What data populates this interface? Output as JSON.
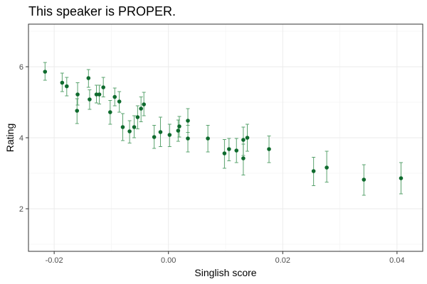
{
  "colors": {
    "point": "#0f6b2e",
    "errorbar": "#5aa36e",
    "grid_major": "#ebebeb",
    "grid_minor": "#f5f5f5",
    "panel_border": "#333333"
  },
  "chart_data": {
    "type": "scatter",
    "title": "This speaker is PROPER.",
    "xlabel": "Singlish score",
    "ylabel": "Rating",
    "xlim": [
      -0.0245,
      0.0445
    ],
    "ylim": [
      0.8,
      7.2
    ],
    "xticks": [
      -0.02,
      0.0,
      0.02,
      0.04
    ],
    "xtick_labels": [
      "-0.02",
      "0.00",
      "0.02",
      "0.04"
    ],
    "yticks": [
      2,
      4,
      6
    ],
    "ytick_labels": [
      "2",
      "4",
      "6"
    ],
    "grid": true,
    "legend": "none",
    "series": [
      {
        "points": [
          {
            "x": -0.0216,
            "y": 5.86,
            "ylo": 5.62,
            "yhi": 6.12
          },
          {
            "x": -0.0186,
            "y": 5.55,
            "ylo": 5.3,
            "yhi": 5.82
          },
          {
            "x": -0.0178,
            "y": 5.45,
            "ylo": 5.18,
            "yhi": 5.7
          },
          {
            "x": -0.016,
            "y": 4.76,
            "ylo": 4.4,
            "yhi": 5.1
          },
          {
            "x": -0.0159,
            "y": 5.22,
            "ylo": 4.92,
            "yhi": 5.55
          },
          {
            "x": -0.014,
            "y": 5.68,
            "ylo": 5.42,
            "yhi": 5.92
          },
          {
            "x": -0.0138,
            "y": 5.08,
            "ylo": 4.8,
            "yhi": 5.35
          },
          {
            "x": -0.0126,
            "y": 5.22,
            "ylo": 4.98,
            "yhi": 5.48
          },
          {
            "x": -0.0121,
            "y": 5.22,
            "ylo": 4.95,
            "yhi": 5.48
          },
          {
            "x": -0.0114,
            "y": 5.42,
            "ylo": 5.15,
            "yhi": 5.7
          },
          {
            "x": -0.0102,
            "y": 4.72,
            "ylo": 4.38,
            "yhi": 5.05
          },
          {
            "x": -0.0094,
            "y": 5.15,
            "ylo": 4.9,
            "yhi": 5.4
          },
          {
            "x": -0.0086,
            "y": 5.02,
            "ylo": 4.72,
            "yhi": 5.3
          },
          {
            "x": -0.008,
            "y": 4.3,
            "ylo": 3.92,
            "yhi": 4.68
          },
          {
            "x": -0.0068,
            "y": 4.18,
            "ylo": 3.85,
            "yhi": 4.48
          },
          {
            "x": -0.006,
            "y": 4.3,
            "ylo": 4.0,
            "yhi": 4.62
          },
          {
            "x": -0.0054,
            "y": 4.58,
            "ylo": 4.25,
            "yhi": 4.9
          },
          {
            "x": -0.0048,
            "y": 4.82,
            "ylo": 4.45,
            "yhi": 5.15
          },
          {
            "x": -0.0043,
            "y": 4.94,
            "ylo": 4.62,
            "yhi": 5.28
          },
          {
            "x": -0.0025,
            "y": 4.02,
            "ylo": 3.7,
            "yhi": 4.35
          },
          {
            "x": -0.0014,
            "y": 4.16,
            "ylo": 3.75,
            "yhi": 4.58
          },
          {
            "x": 0.0002,
            "y": 4.08,
            "ylo": 3.75,
            "yhi": 4.38
          },
          {
            "x": 0.0017,
            "y": 4.2,
            "ylo": 3.9,
            "yhi": 4.5
          },
          {
            "x": 0.0019,
            "y": 4.32,
            "ylo": 4.02,
            "yhi": 4.6
          },
          {
            "x": 0.0034,
            "y": 4.48,
            "ylo": 4.15,
            "yhi": 4.82
          },
          {
            "x": 0.0034,
            "y": 3.98,
            "ylo": 3.6,
            "yhi": 4.35
          },
          {
            "x": 0.0069,
            "y": 3.98,
            "ylo": 3.6,
            "yhi": 4.35
          },
          {
            "x": 0.0098,
            "y": 3.56,
            "ylo": 3.14,
            "yhi": 3.95
          },
          {
            "x": 0.0106,
            "y": 3.68,
            "ylo": 3.35,
            "yhi": 3.98
          },
          {
            "x": 0.0119,
            "y": 3.64,
            "ylo": 3.3,
            "yhi": 3.98
          },
          {
            "x": 0.0131,
            "y": 3.94,
            "ylo": 3.5,
            "yhi": 4.3
          },
          {
            "x": 0.0131,
            "y": 3.42,
            "ylo": 2.95,
            "yhi": 3.82
          },
          {
            "x": 0.0138,
            "y": 4.0,
            "ylo": 3.62,
            "yhi": 4.38
          },
          {
            "x": 0.0176,
            "y": 3.68,
            "ylo": 3.3,
            "yhi": 4.05
          },
          {
            "x": 0.0254,
            "y": 3.06,
            "ylo": 2.65,
            "yhi": 3.45
          },
          {
            "x": 0.0277,
            "y": 3.16,
            "ylo": 2.75,
            "yhi": 3.62
          },
          {
            "x": 0.0342,
            "y": 2.82,
            "ylo": 2.38,
            "yhi": 3.24
          },
          {
            "x": 0.0407,
            "y": 2.86,
            "ylo": 2.42,
            "yhi": 3.3
          }
        ]
      }
    ]
  }
}
